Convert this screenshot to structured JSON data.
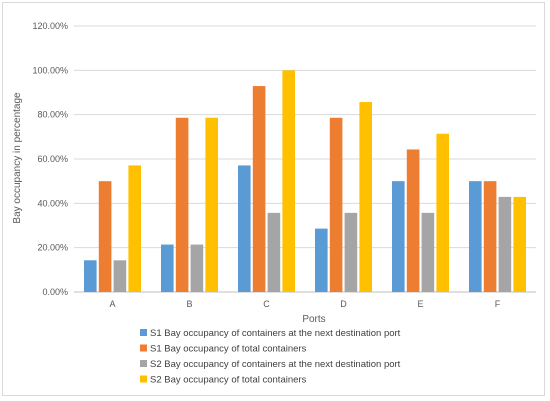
{
  "chart_data": {
    "type": "bar",
    "title": "",
    "xlabel": "Ports",
    "ylabel": "Bay occupancy in percentage",
    "categories": [
      "A",
      "B",
      "C",
      "D",
      "E",
      "F"
    ],
    "ylim": [
      0,
      120
    ],
    "yticks": [
      0,
      20,
      40,
      60,
      80,
      100,
      120
    ],
    "ytick_labels": [
      "0.00%",
      "20.00%",
      "40.00%",
      "60.00%",
      "80.00%",
      "100.00%",
      "120.00%"
    ],
    "grid": true,
    "legend_position": "bottom",
    "series": [
      {
        "name": "S1 Bay occupancy of containers at the next destination port",
        "color": "#5b9bd5",
        "values": [
          14.3,
          21.4,
          57.1,
          28.6,
          50.0,
          50.0
        ]
      },
      {
        "name": "S1 Bay occupancy of total containers",
        "color": "#ed7d31",
        "values": [
          50.0,
          78.6,
          92.9,
          78.6,
          64.3,
          50.0
        ]
      },
      {
        "name": "S2 Bay occupancy of containers at the next destination port",
        "color": "#a5a5a5",
        "values": [
          14.3,
          21.4,
          35.7,
          35.7,
          35.7,
          42.9
        ]
      },
      {
        "name": "S2 Bay occupancy of total containers",
        "color": "#ffc000",
        "values": [
          57.1,
          78.6,
          100.0,
          85.7,
          71.4,
          42.9
        ]
      }
    ]
  }
}
